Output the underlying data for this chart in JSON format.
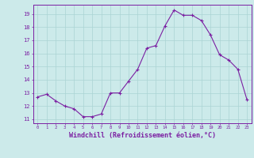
{
  "x": [
    0,
    1,
    2,
    3,
    4,
    5,
    6,
    7,
    8,
    9,
    10,
    11,
    12,
    13,
    14,
    15,
    16,
    17,
    18,
    19,
    20,
    21,
    22,
    23
  ],
  "y": [
    12.7,
    12.9,
    12.4,
    12.0,
    11.8,
    11.2,
    11.2,
    11.4,
    13.0,
    13.0,
    13.9,
    14.8,
    16.4,
    16.6,
    18.1,
    19.3,
    18.9,
    18.9,
    18.5,
    17.4,
    15.9,
    15.5,
    14.8,
    12.5
  ],
  "line_color": "#7b1fa2",
  "marker": "+",
  "marker_size": 3.5,
  "bg_color": "#cceaea",
  "grid_color": "#aad4d4",
  "axis_color": "#7b1fa2",
  "tick_color": "#7b1fa2",
  "xlabel": "Windchill (Refroidissement éolien,°C)",
  "xlabel_fontsize": 6,
  "ylabel_ticks": [
    11,
    12,
    13,
    14,
    15,
    16,
    17,
    18,
    19
  ],
  "xlim": [
    -0.5,
    23.5
  ],
  "ylim": [
    10.7,
    19.7
  ]
}
